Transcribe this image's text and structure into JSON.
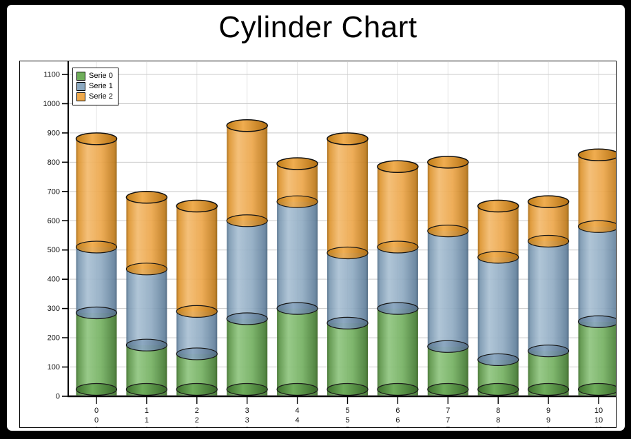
{
  "window": {
    "frame_color": "#000000",
    "inner_background": "#ffffff"
  },
  "chart_data": {
    "type": "bar",
    "variant": "stacked-cylinder-3d",
    "stacked": true,
    "title": "Cylinder Chart",
    "categories": [
      "0",
      "1",
      "2",
      "3",
      "4",
      "5",
      "6",
      "7",
      "8",
      "9",
      "10"
    ],
    "series": [
      {
        "name": "Serie 0",
        "color": "#6fae5a",
        "values": [
          285,
          175,
          145,
          265,
          300,
          250,
          300,
          170,
          125,
          155,
          255
        ]
      },
      {
        "name": "Serie 1",
        "color": "#8ca9c1",
        "values": [
          225,
          260,
          145,
          335,
          365,
          240,
          210,
          395,
          350,
          375,
          325
        ]
      },
      {
        "name": "Serie 2",
        "color": "#efa94b",
        "values": [
          370,
          245,
          360,
          325,
          130,
          390,
          275,
          235,
          175,
          135,
          245
        ]
      }
    ],
    "stack_totals": [
      880,
      680,
      650,
      925,
      795,
      880,
      785,
      800,
      650,
      665,
      825
    ],
    "y_axis": {
      "min": 0,
      "max": 1100,
      "step": 100,
      "tick_labels": [
        "0",
        "100",
        "200",
        "300",
        "400",
        "500",
        "600",
        "700",
        "800",
        "900",
        "1000",
        "1100"
      ]
    },
    "x_axis": {
      "label_lines_per_category": 3,
      "note": "each category index is printed once per series under its tick"
    },
    "legend": {
      "position": "top-left",
      "items": [
        {
          "label": "Serie 0",
          "color": "#6fae5a"
        },
        {
          "label": "Serie 1",
          "color": "#8ca9c1"
        },
        {
          "label": "Serie 2",
          "color": "#efa94b"
        }
      ]
    },
    "grid": {
      "horizontal": true,
      "vertical": true
    },
    "palette": {
      "grid_horizontal": "#c9c9c9",
      "grid_vertical": "#e3e3e3",
      "axis": "#000000",
      "tick_text": "#111111",
      "green_light": "#8fc57f",
      "green_mid": "#74b061",
      "green_dark": "#467d35",
      "blue_light": "#a9c0d3",
      "blue_mid": "#90abc2",
      "blue_dark": "#62809c",
      "orange_light": "#f3ba6d",
      "orange_mid": "#eca64a",
      "orange_dark": "#bf7a1b"
    }
  }
}
